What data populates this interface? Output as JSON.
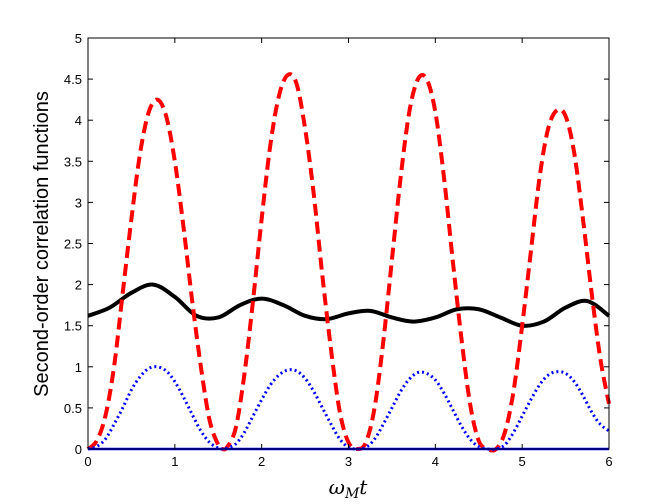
{
  "chart_data": {
    "type": "line",
    "title": "",
    "xlabel": "ω_M t",
    "xlabel_main": "ω",
    "xlabel_sub": "M",
    "xlabel_tail": "t",
    "ylabel": "Second-order correlation functions",
    "xlim": [
      0,
      6
    ],
    "ylim": [
      0,
      5
    ],
    "grid": false,
    "legend": false,
    "x_ticks": [
      "0",
      "1",
      "2",
      "3",
      "4",
      "5",
      "6"
    ],
    "y_ticks": [
      "0",
      "0.5",
      "1",
      "1.5",
      "2",
      "2.5",
      "3",
      "3.5",
      "4",
      "4.5",
      "5"
    ],
    "colors": {
      "black_solid": "#000000",
      "red_dashed": "#ff0000",
      "blue_dotted": "#0000ff"
    },
    "series": [
      {
        "style": "solid",
        "color": "#000000",
        "x": [
          0,
          0.25,
          0.5,
          0.75,
          1.0,
          1.25,
          1.5,
          1.75,
          2.0,
          2.25,
          2.5,
          2.75,
          3.0,
          3.25,
          3.5,
          3.75,
          4.0,
          4.25,
          4.5,
          4.75,
          5.0,
          5.25,
          5.5,
          5.75,
          6.0
        ],
        "y": [
          1.62,
          1.72,
          1.9,
          2.0,
          1.85,
          1.62,
          1.6,
          1.75,
          1.83,
          1.75,
          1.62,
          1.58,
          1.65,
          1.68,
          1.6,
          1.55,
          1.6,
          1.7,
          1.7,
          1.6,
          1.5,
          1.55,
          1.72,
          1.8,
          1.62
        ]
      },
      {
        "style": "dashed",
        "color": "#ff0000",
        "x": [
          0,
          0.1,
          0.2,
          0.3,
          0.4,
          0.5,
          0.6,
          0.7,
          0.8,
          0.9,
          1.0,
          1.1,
          1.2,
          1.3,
          1.4,
          1.5,
          1.55,
          1.6,
          1.7,
          1.8,
          1.9,
          2.0,
          2.1,
          2.2,
          2.3,
          2.4,
          2.5,
          2.6,
          2.7,
          2.8,
          2.9,
          3.0,
          3.1,
          3.2,
          3.3,
          3.4,
          3.5,
          3.6,
          3.7,
          3.8,
          3.9,
          4.0,
          4.1,
          4.2,
          4.3,
          4.4,
          4.5,
          4.6,
          4.7,
          4.8,
          4.9,
          5.0,
          5.1,
          5.2,
          5.3,
          5.4,
          5.5,
          5.6,
          5.7,
          5.8,
          5.9,
          6.0
        ],
        "y": [
          0.0,
          0.1,
          0.4,
          1.0,
          1.9,
          2.8,
          3.6,
          4.1,
          4.25,
          4.05,
          3.5,
          2.7,
          1.8,
          1.0,
          0.35,
          0.05,
          0.0,
          0.02,
          0.25,
          0.9,
          1.8,
          2.8,
          3.7,
          4.3,
          4.55,
          4.45,
          3.9,
          3.1,
          2.1,
          1.2,
          0.45,
          0.08,
          0.0,
          0.08,
          0.5,
          1.3,
          2.3,
          3.3,
          4.1,
          4.5,
          4.5,
          4.1,
          3.3,
          2.3,
          1.35,
          0.55,
          0.1,
          0.0,
          0.0,
          0.2,
          0.7,
          1.5,
          2.4,
          3.3,
          3.9,
          4.12,
          4.05,
          3.6,
          2.8,
          1.9,
          1.1,
          0.55
        ]
      },
      {
        "style": "dotted",
        "color": "#0000ff",
        "x": [
          0,
          0.1,
          0.2,
          0.3,
          0.4,
          0.5,
          0.6,
          0.7,
          0.8,
          0.9,
          1.0,
          1.1,
          1.2,
          1.3,
          1.4,
          1.5,
          1.55,
          1.6,
          1.7,
          1.8,
          1.9,
          2.0,
          2.1,
          2.2,
          2.3,
          2.4,
          2.5,
          2.6,
          2.7,
          2.8,
          2.9,
          3.0,
          3.1,
          3.2,
          3.3,
          3.4,
          3.5,
          3.6,
          3.7,
          3.8,
          3.9,
          4.0,
          4.1,
          4.2,
          4.3,
          4.4,
          4.5,
          4.6,
          4.7,
          4.8,
          4.9,
          5.0,
          5.1,
          5.2,
          5.3,
          5.4,
          5.5,
          5.6,
          5.7,
          5.8,
          5.9,
          6.0
        ],
        "y": [
          0.0,
          0.03,
          0.12,
          0.3,
          0.5,
          0.72,
          0.88,
          0.98,
          1.0,
          0.95,
          0.82,
          0.63,
          0.42,
          0.22,
          0.08,
          0.01,
          0.0,
          0.01,
          0.06,
          0.2,
          0.4,
          0.6,
          0.78,
          0.9,
          0.96,
          0.95,
          0.86,
          0.7,
          0.5,
          0.3,
          0.12,
          0.02,
          0.0,
          0.02,
          0.12,
          0.3,
          0.5,
          0.7,
          0.85,
          0.93,
          0.92,
          0.84,
          0.68,
          0.48,
          0.28,
          0.12,
          0.03,
          0.0,
          0.0,
          0.05,
          0.2,
          0.4,
          0.6,
          0.78,
          0.9,
          0.94,
          0.92,
          0.82,
          0.65,
          0.45,
          0.3,
          0.22
        ]
      },
      {
        "style": "solid",
        "color": "#0000ff",
        "x": [
          0,
          6
        ],
        "y": [
          0.0,
          0.0
        ]
      }
    ]
  }
}
